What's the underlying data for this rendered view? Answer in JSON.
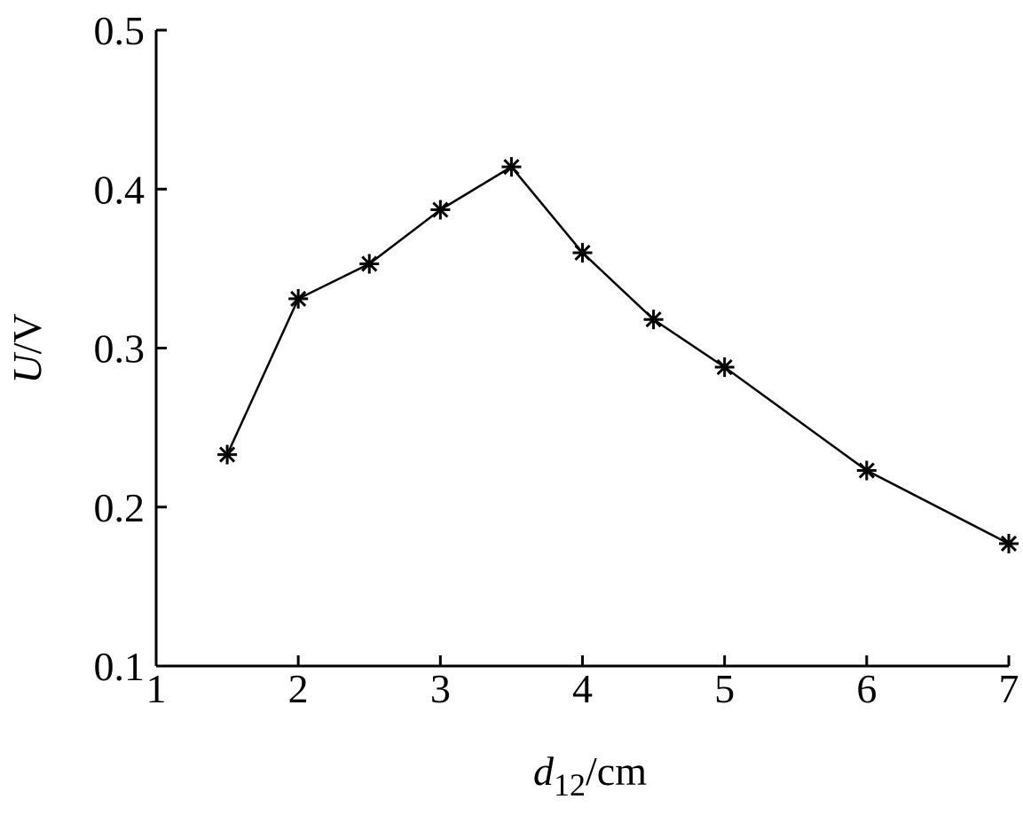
{
  "chart_data": {
    "type": "line",
    "xlabel": {
      "var": "d",
      "sub": "12",
      "unit": "/cm"
    },
    "ylabel": {
      "var": "U",
      "unit": "/V"
    },
    "xlim": [
      1,
      7
    ],
    "ylim": [
      0.1,
      0.5
    ],
    "xticks": [
      "1",
      "2",
      "3",
      "4",
      "5",
      "6",
      "7"
    ],
    "yticks": [
      "0.1",
      "0.2",
      "0.3",
      "0.4",
      "0.5"
    ],
    "grid": false,
    "series": [
      {
        "marker": "asterisk",
        "color": "#000000",
        "x": [
          1.5,
          2,
          2.5,
          3,
          3.5,
          4,
          4.5,
          5,
          6,
          7
        ],
        "y": [
          0.233,
          0.331,
          0.353,
          0.387,
          0.414,
          0.36,
          0.318,
          0.288,
          0.223,
          0.177
        ]
      }
    ]
  }
}
